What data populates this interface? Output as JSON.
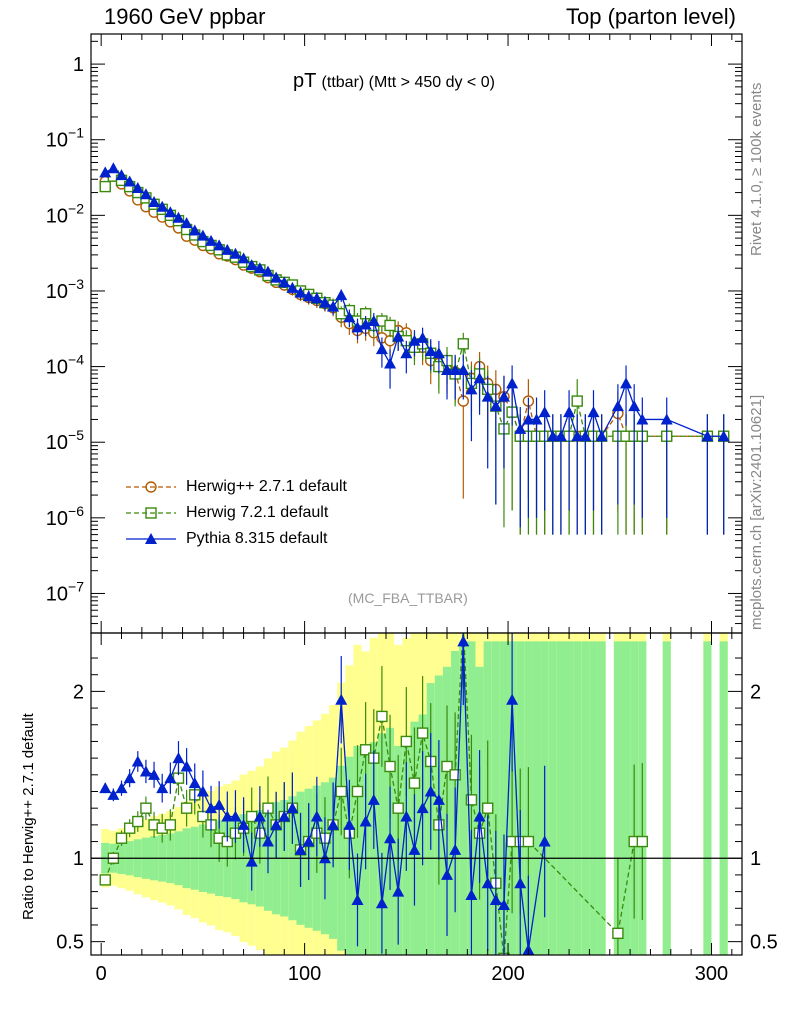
{
  "header": {
    "left": "1960 GeV ppbar",
    "right": "Top (parton level)"
  },
  "side_labels": {
    "top": "Rivet 4.1.0, ≥ 100k events",
    "bottom": "mcplots.cern.ch [arXiv:2401.10621]"
  },
  "plot_title": {
    "main": "pT",
    "sub": "(ttbar) (Mtt > 450 dy < 0)"
  },
  "watermark": "(MC_FBA_TTBAR)",
  "ratio_ylabel": "Ratio to Herwig++ 2.7.1 default",
  "colors": {
    "herwigpp": "#b35a00",
    "herwig7": "#3a8a0e",
    "pythia": "#0022cc",
    "band_inner": "#90ee90",
    "band_outer": "#ffff90"
  },
  "legend": [
    {
      "label": "Herwig++ 2.7.1 default",
      "marker": "circle",
      "style": "dashed"
    },
    {
      "label": "Herwig 7.2.1 default",
      "marker": "square",
      "style": "dashed"
    },
    {
      "label": "Pythia 8.315 default",
      "marker": "triangle",
      "style": "solid"
    }
  ],
  "chart_data": [
    {
      "type": "line",
      "scale": "log",
      "title": "pT (ttbar) (Mtt > 450 dy < 0)",
      "xlim": [
        -5,
        315
      ],
      "ylim": [
        3e-08,
        2.5
      ],
      "ytick_labels": [
        "10^-7",
        "10^-6",
        "10^-5",
        "10^-4",
        "10^-3",
        "10^-2",
        "10^-1",
        "1"
      ],
      "series": [
        {
          "name": "Herwig++ 2.7.1 default",
          "x": [
            2,
            6,
            10,
            14,
            18,
            22,
            26,
            30,
            34,
            38,
            42,
            46,
            50,
            54,
            58,
            62,
            66,
            70,
            74,
            78,
            82,
            86,
            90,
            94,
            98,
            102,
            106,
            110,
            114,
            118,
            122,
            126,
            130,
            134,
            138,
            142,
            146,
            150,
            154,
            158,
            162,
            166,
            170,
            174,
            178,
            182,
            186,
            190,
            194,
            198,
            202,
            206,
            210,
            214,
            218,
            222,
            226,
            230,
            234,
            238,
            242,
            246,
            254,
            258,
            262,
            266,
            278,
            298,
            306
          ],
          "y": [
            0.028,
            0.033,
            0.026,
            0.021,
            0.016,
            0.013,
            0.011,
            0.0095,
            0.0082,
            0.0068,
            0.0053,
            0.0047,
            0.004,
            0.0036,
            0.0031,
            0.0029,
            0.0026,
            0.0022,
            0.002,
            0.0018,
            0.0015,
            0.0013,
            0.0012,
            0.00105,
            0.0009,
            0.00082,
            0.00075,
            0.00068,
            0.0006,
            0.00045,
            0.00037,
            0.0003,
            0.00032,
            0.00028,
            0.00024,
            0.00022,
            0.0003,
            0.00028,
            0.0002,
            0.00018,
            0.00012,
            0.00011,
            0.0001,
            8.5e-05,
            3.5e-05,
            7e-05,
            0.0001,
            6e-05,
            5e-05,
            4e-05,
            2.5e-05,
            1.2e-05,
            3.5e-05,
            1.2e-05,
            1.2e-05,
            1.2e-05,
            1.2e-05,
            1.2e-05,
            1.2e-05,
            1.2e-05,
            1.2e-05,
            1.2e-05,
            2.4e-05,
            1.2e-05,
            1.2e-05,
            1.2e-05,
            1.2e-05,
            1.2e-05,
            1.2e-05
          ]
        },
        {
          "name": "Herwig 7.2.1 default",
          "x": [
            2,
            6,
            10,
            14,
            18,
            22,
            26,
            30,
            34,
            38,
            42,
            46,
            50,
            54,
            58,
            62,
            66,
            70,
            74,
            78,
            82,
            86,
            90,
            94,
            98,
            102,
            106,
            110,
            114,
            118,
            122,
            126,
            130,
            134,
            138,
            142,
            146,
            150,
            154,
            158,
            162,
            166,
            170,
            174,
            178,
            182,
            186,
            190,
            194,
            198,
            202,
            206,
            210,
            214,
            218,
            222,
            226,
            230,
            234,
            238,
            242,
            246,
            254,
            258,
            262,
            266,
            278,
            298,
            306
          ],
          "y": [
            0.024,
            0.033,
            0.029,
            0.024,
            0.02,
            0.017,
            0.014,
            0.012,
            0.01,
            0.0085,
            0.0065,
            0.0055,
            0.0045,
            0.004,
            0.0035,
            0.003,
            0.0028,
            0.0024,
            0.0021,
            0.0019,
            0.0016,
            0.0014,
            0.0013,
            0.0012,
            0.001,
            0.0009,
            0.0008,
            0.0007,
            0.00065,
            0.0005,
            0.00055,
            0.0004,
            0.0005,
            0.00035,
            0.0004,
            0.00035,
            0.00025,
            0.00022,
            0.00018,
            0.0002,
            0.00015,
            0.0001,
            0.00012,
            8e-05,
            0.0002,
            6e-05,
            8e-05,
            5e-05,
            3e-05,
            1.5e-05,
            2.5e-05,
            1.2e-05,
            1.2e-05,
            1.2e-05,
            1.2e-05,
            1.2e-05,
            1.2e-05,
            1.2e-05,
            3.5e-05,
            1.2e-05,
            1.2e-05,
            1.2e-05,
            1.2e-05,
            1.2e-05,
            1.2e-05,
            1.2e-05,
            1.2e-05,
            1.2e-05,
            1.2e-05
          ]
        },
        {
          "name": "Pythia 8.315 default",
          "x": [
            2,
            6,
            10,
            14,
            18,
            22,
            26,
            30,
            34,
            38,
            42,
            46,
            50,
            54,
            58,
            62,
            66,
            70,
            74,
            78,
            82,
            86,
            90,
            94,
            98,
            102,
            106,
            110,
            114,
            118,
            122,
            126,
            130,
            134,
            138,
            142,
            146,
            150,
            154,
            158,
            162,
            166,
            170,
            174,
            178,
            182,
            186,
            190,
            194,
            198,
            202,
            206,
            210,
            214,
            218,
            222,
            226,
            230,
            234,
            238,
            242,
            246,
            254,
            258,
            262,
            266,
            278,
            298,
            306
          ],
          "y": [
            0.037,
            0.042,
            0.034,
            0.028,
            0.023,
            0.019,
            0.015,
            0.013,
            0.011,
            0.0093,
            0.0079,
            0.0063,
            0.0054,
            0.0046,
            0.004,
            0.0035,
            0.0031,
            0.0027,
            0.0022,
            0.002,
            0.0018,
            0.0015,
            0.0013,
            0.0011,
            0.00095,
            0.00085,
            0.0008,
            0.0007,
            0.00062,
            0.00088,
            0.00045,
            0.00033,
            0.00036,
            0.0004,
            0.00017,
            0.00011,
            0.00025,
            0.00015,
            0.00022,
            0.00024,
            0.00016,
            0.00015,
            9e-05,
            9e-05,
            9e-05,
            5e-05,
            7e-05,
            4e-05,
            3e-05,
            4e-05,
            6e-05,
            1.5e-05,
            2e-05,
            2e-05,
            2.5e-05,
            1.2e-05,
            1.2e-05,
            2.5e-05,
            1.2e-05,
            1.2e-05,
            2.5e-05,
            1.2e-05,
            3e-05,
            6e-05,
            3e-05,
            2e-05,
            2e-05,
            1.2e-05,
            1.2e-05
          ]
        }
      ]
    },
    {
      "type": "line",
      "title": "Ratio to Herwig++ 2.7.1 default",
      "xlim": [
        -5,
        315
      ],
      "ylim": [
        0.42,
        2.35
      ],
      "xticks": [
        0,
        100,
        200,
        300
      ],
      "yticks_labels": [
        "0.5",
        "1",
        "2"
      ],
      "reference_value": 1,
      "series": [
        {
          "name": "Herwig 7.2.1 default",
          "x": [
            2,
            6,
            10,
            14,
            18,
            22,
            26,
            30,
            34,
            38,
            42,
            46,
            50,
            54,
            58,
            62,
            66,
            70,
            74,
            78,
            82,
            86,
            90,
            94,
            98,
            102,
            106,
            110,
            114,
            118,
            122,
            126,
            130,
            134,
            138,
            142,
            146,
            150,
            154,
            158,
            162,
            166,
            170,
            174,
            178,
            182,
            186,
            190,
            194,
            198,
            202,
            206,
            210,
            254,
            262,
            266
          ],
          "y": [
            0.87,
            1.0,
            1.12,
            1.18,
            1.22,
            1.3,
            1.2,
            1.18,
            1.2,
            1.48,
            1.3,
            1.38,
            1.25,
            1.2,
            1.12,
            1.1,
            1.15,
            1.18,
            1.25,
            1.15,
            1.3,
            1.2,
            1.25,
            1.3,
            1.05,
            1.1,
            1.15,
            1.12,
            1.2,
            1.4,
            1.15,
            1.4,
            1.65,
            1.6,
            1.85,
            1.55,
            1.3,
            1.7,
            1.45,
            1.75,
            1.58,
            1.2,
            1.55,
            1.5,
            2.4,
            1.35,
            1.15,
            1.3,
            0.85,
            0.4,
            1.1,
            1.1,
            1.1,
            0.55,
            1.1,
            1.1
          ]
        },
        {
          "name": "Pythia 8.315 default",
          "x": [
            2,
            6,
            10,
            14,
            18,
            22,
            26,
            30,
            34,
            38,
            42,
            46,
            50,
            54,
            58,
            62,
            66,
            70,
            74,
            78,
            82,
            86,
            90,
            94,
            98,
            102,
            106,
            110,
            114,
            118,
            122,
            126,
            130,
            134,
            138,
            142,
            146,
            150,
            154,
            158,
            162,
            166,
            170,
            174,
            178,
            182,
            186,
            190,
            194,
            198,
            202,
            206,
            210,
            218
          ],
          "y": [
            1.42,
            1.38,
            1.42,
            1.48,
            1.58,
            1.52,
            1.5,
            1.42,
            1.48,
            1.6,
            1.55,
            1.45,
            1.4,
            1.3,
            1.32,
            1.25,
            1.25,
            1.2,
            0.98,
            1.25,
            1.1,
            1.2,
            1.25,
            1.3,
            1.05,
            1.1,
            1.25,
            1.0,
            1.2,
            1.95,
            1.2,
            0.75,
            1.22,
            1.35,
            0.73,
            1.12,
            0.8,
            1.25,
            1.05,
            1.3,
            1.4,
            1.35,
            0.9,
            1.05,
            2.3,
            0.78,
            1.25,
            0.85,
            0.75,
            0.72,
            1.95,
            0.85,
            0.45,
            1.1
          ]
        }
      ]
    }
  ]
}
